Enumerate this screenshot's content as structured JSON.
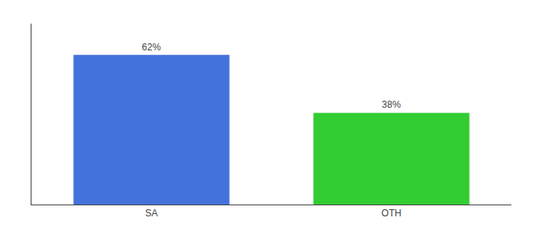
{
  "chart_data": {
    "type": "bar",
    "categories": [
      "SA",
      "OTH"
    ],
    "values": [
      62,
      38
    ],
    "value_labels": [
      "62%",
      "38%"
    ],
    "data_labels": true,
    "colors": [
      "#4472db",
      "#33cc33"
    ],
    "ylim": [
      0,
      75
    ],
    "yticks": [],
    "tick_labels": "x",
    "grid": false
  }
}
